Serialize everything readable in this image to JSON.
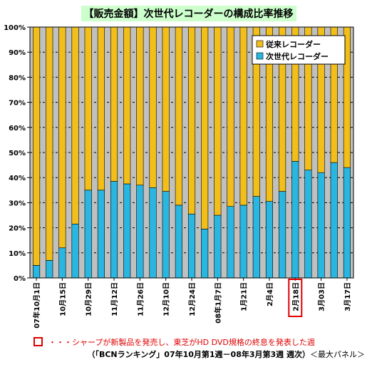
{
  "title": "【販売金額】次世代レコーダーの構成比率推移",
  "note": "・・・シャープが新製品を発売し、東芝がHD DVD規格の終息を発表した週",
  "source_bold": "（「BCNランキング」07年10月第1週－08年3月第3週 週次）",
  "source_tail": "＜最大パネル＞",
  "colors": {
    "next_gen": "#29b6e0",
    "conventional": "#f2be1a",
    "plot_bg": "#c0c0c0",
    "highlight": "#e00000"
  },
  "chart_data": {
    "type": "bar",
    "stacked": true,
    "percent": true,
    "ylim": [
      0,
      100
    ],
    "yticks": [
      "0%",
      "10%",
      "20%",
      "30%",
      "40%",
      "50%",
      "60%",
      "70%",
      "80%",
      "90%",
      "100%"
    ],
    "grid": true,
    "legend_position": "top-right",
    "tick_labels": [
      {
        "index": 0,
        "label": "07年10月1日"
      },
      {
        "index": 2,
        "label": "10月15日"
      },
      {
        "index": 4,
        "label": "10月29日"
      },
      {
        "index": 6,
        "label": "11月12日"
      },
      {
        "index": 8,
        "label": "11月26日"
      },
      {
        "index": 10,
        "label": "12月10日"
      },
      {
        "index": 12,
        "label": "12月24日"
      },
      {
        "index": 14,
        "label": "08年1月7日"
      },
      {
        "index": 16,
        "label": "1月21日"
      },
      {
        "index": 18,
        "label": "2月4日"
      },
      {
        "index": 20,
        "label": "2月18日"
      },
      {
        "index": 22,
        "label": "3月03日"
      },
      {
        "index": 24,
        "label": "3月17日"
      }
    ],
    "highlight_index": 20,
    "series": [
      {
        "name": "次世代レコーダー",
        "values": [
          5,
          7,
          12,
          21.5,
          35,
          35,
          38.5,
          37.5,
          37,
          36,
          34.5,
          29,
          25.5,
          19.5,
          25,
          28.5,
          29,
          32.5,
          30.5,
          34.5,
          46.5,
          43,
          42,
          46,
          44
        ]
      },
      {
        "name": "従来レコーダー",
        "values": [
          95,
          93,
          88,
          78.5,
          65,
          65,
          61.5,
          62.5,
          63,
          64,
          65.5,
          71,
          74.5,
          80.5,
          75,
          71.5,
          71,
          67.5,
          69.5,
          65.5,
          53.5,
          57,
          58,
          54,
          56
        ]
      }
    ]
  }
}
